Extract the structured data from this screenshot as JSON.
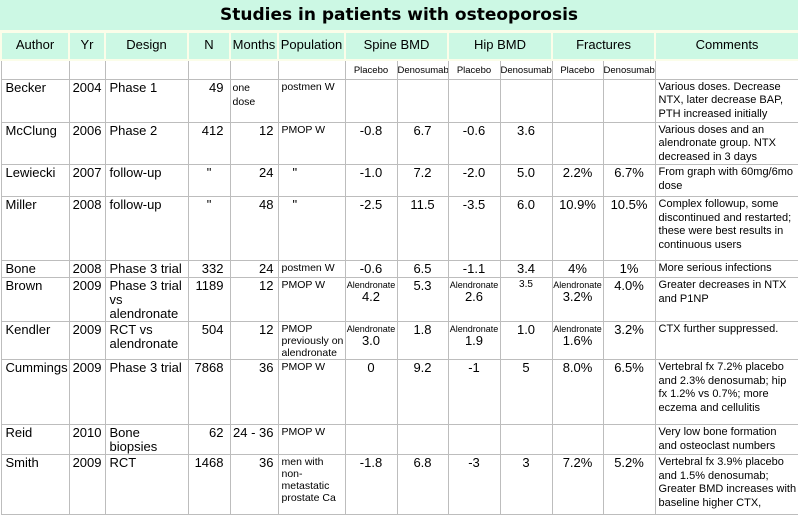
{
  "title": "Studies in patients with osteoporosis",
  "colors": {
    "mint": "#ccf8e4",
    "cream": "#fbfde9",
    "grid": "#bdbdbd"
  },
  "header": {
    "simple_columns": [
      "Author",
      "Yr",
      "Design",
      "N",
      "Months",
      "Population"
    ],
    "groups": [
      {
        "label": "Spine BMD",
        "sub": [
          "Placebo",
          "Denosumab"
        ]
      },
      {
        "label": "Hip BMD",
        "sub": [
          "Placebo",
          "Denosumab"
        ]
      },
      {
        "label": "Fractures",
        "sub": [
          "Placebo",
          "Denosumab"
        ]
      }
    ],
    "comments": "Comments"
  },
  "table": {
    "rows": [
      {
        "author": "Becker",
        "yr": "2004",
        "design": "Phase 1",
        "n": "49",
        "months": "one dose",
        "population": "postmen W",
        "spine_p": "",
        "spine_d": "",
        "hip_p": "",
        "hip_d": "",
        "frac_p": "",
        "frac_d": "",
        "comments": "Various doses.  Decrease NTX, later decrease BAP, PTH increased initially"
      },
      {
        "author": "McClung",
        "yr": "2006",
        "design": "Phase 2",
        "n": "412",
        "months": "12",
        "population": "PMOP W",
        "spine_p": "-0.8",
        "spine_d": "6.7",
        "hip_p": "-0.6",
        "hip_d": "3.6",
        "frac_p": "",
        "frac_d": "",
        "comments": "Various doses and an alendronate group. NTX decreased in 3 days"
      },
      {
        "author": "Lewiecki",
        "yr": "2007",
        "design": "follow-up",
        "n": "\"",
        "months": "24",
        "population": "\"",
        "spine_p": "-1.0",
        "spine_d": "7.2",
        "hip_p": "-2.0",
        "hip_d": "5.0",
        "frac_p": "2.2%",
        "frac_d": "6.7%",
        "comments": "From graph with 60mg/6mo dose"
      },
      {
        "author": "Miller",
        "yr": "2008",
        "design": "follow-up",
        "n": "\"",
        "months": "48",
        "population": "\"",
        "spine_p": "-2.5",
        "spine_d": "11.5",
        "hip_p": "-3.5",
        "hip_d": "6.0",
        "frac_p": "10.9%",
        "frac_d": "10.5%",
        "comments": "Complex followup, some discontinued and restarted; these were best results in continuous users"
      },
      {
        "author": "Bone",
        "yr": "2008",
        "design": "Phase 3 trial",
        "n": "332",
        "months": "24",
        "population": "postmen W",
        "spine_p": "-0.6",
        "spine_d": "6.5",
        "hip_p": "-1.1",
        "hip_d": "3.4",
        "frac_p": "4%",
        "frac_d": "1%",
        "comments": "More serious infections"
      },
      {
        "author": "Brown",
        "yr": "2009",
        "design": "Phase 3 trial vs alendronate",
        "n": "1189",
        "months": "12",
        "population": "PMOP W",
        "spine_p_label": "Alendronate",
        "spine_p": "4.2",
        "spine_d": "5.3",
        "hip_p_label": "Alendronate",
        "hip_p": "2.6",
        "hip_d": "3.5",
        "frac_p_label": "Alendronate",
        "frac_p": "3.2%",
        "frac_d": "4.0%",
        "small": [
          "hip_d"
        ],
        "comments": "Greater decreases in NTX and P1NP"
      },
      {
        "author": "Kendler",
        "yr": "2009",
        "design": "RCT vs alendronate",
        "n": "504",
        "months": "12",
        "population": "PMOP previously on alendronate",
        "spine_p_label": "Alendronate",
        "spine_p": "3.0",
        "spine_d": "1.8",
        "hip_p_label": "Alendronate",
        "hip_p": "1.9",
        "hip_d": "1.0",
        "frac_p_label": "Alendronate",
        "frac_p": "1.6%",
        "frac_d": "3.2%",
        "comments": "CTX further suppressed."
      },
      {
        "author": "Cummings",
        "yr": "2009",
        "design": "Phase 3 trial",
        "n": "7868",
        "months": "36",
        "population": "PMOP W",
        "spine_p": "0",
        "spine_d": "9.2",
        "hip_p": "-1",
        "hip_d": "5",
        "frac_p": "8.0%",
        "frac_d": "6.5%",
        "comments": "Vertebral fx 7.2% placebo and 2.3% denosumab; hip fx 1.2% vs 0.7%; more eczema and cellulitis"
      },
      {
        "author": "Reid",
        "yr": "2010",
        "design": "Bone biopsies",
        "n": "62",
        "months": "24 - 36",
        "population": "PMOP W",
        "spine_p": "",
        "spine_d": "",
        "hip_p": "",
        "hip_d": "",
        "frac_p": "",
        "frac_d": "",
        "comments": "Very low bone formation and osteoclast numbers"
      },
      {
        "author": "Smith",
        "yr": "2009",
        "design": "RCT",
        "n": "1468",
        "months": "36",
        "population": "men with non-metastatic prostate Ca",
        "spine_p": "-1.8",
        "spine_d": "6.8",
        "hip_p": "-3",
        "hip_d": "3",
        "frac_p": "7.2%",
        "frac_d": "5.2%",
        "comments": "Vertebral fx 3.9% placebo and 1.5% denosumab; Greater BMD increases with baseline higher CTX,"
      }
    ]
  }
}
